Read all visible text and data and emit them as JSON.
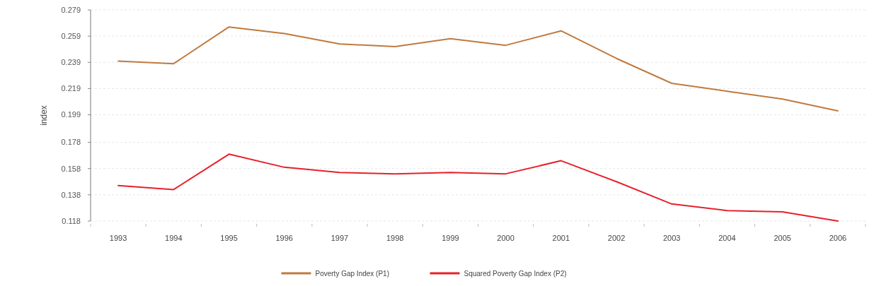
{
  "chart_data": {
    "type": "line",
    "ylabel": "index",
    "categories": [
      "1993",
      "1994",
      "1995",
      "1996",
      "1997",
      "1998",
      "1999",
      "2000",
      "2001",
      "2002",
      "2003",
      "2004",
      "2005",
      "2006"
    ],
    "series": [
      {
        "name": "Poverty Gap Index (P1)",
        "color": "#c07a3e",
        "values": [
          0.24,
          0.238,
          0.266,
          0.261,
          0.253,
          0.251,
          0.257,
          0.252,
          0.263,
          0.242,
          0.223,
          0.217,
          0.211,
          0.202
        ]
      },
      {
        "name": "Squared Poverty Gap Index (P2)",
        "color": "#e8202a",
        "values": [
          0.145,
          0.142,
          0.169,
          0.159,
          0.155,
          0.154,
          0.155,
          0.154,
          0.164,
          0.148,
          0.131,
          0.126,
          0.125,
          0.118
        ]
      }
    ],
    "ylim": [
      0.118,
      0.279
    ],
    "yticks": [
      0.118,
      0.138,
      0.158,
      0.178,
      0.199,
      0.219,
      0.239,
      0.259,
      0.279
    ],
    "grid": "y",
    "legend": "bottom",
    "marker": "none",
    "line_style": "solid"
  }
}
